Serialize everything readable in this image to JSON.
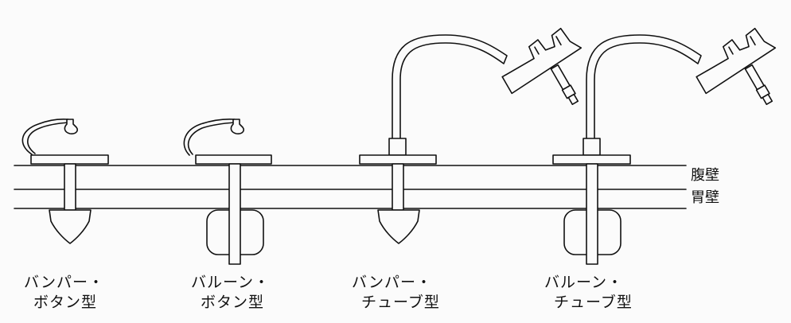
{
  "layers": {
    "abdominal_wall": "腹壁",
    "stomach_wall": "胃壁"
  },
  "types": [
    {
      "line1": "バンパー・",
      "line2": "ボタン型"
    },
    {
      "line1": "バルーン・",
      "line2": "ボタン型"
    },
    {
      "line1": "バンパー・",
      "line2": "チューブ型"
    },
    {
      "line1": "バルーン・",
      "line2": "チューブ型"
    }
  ]
}
